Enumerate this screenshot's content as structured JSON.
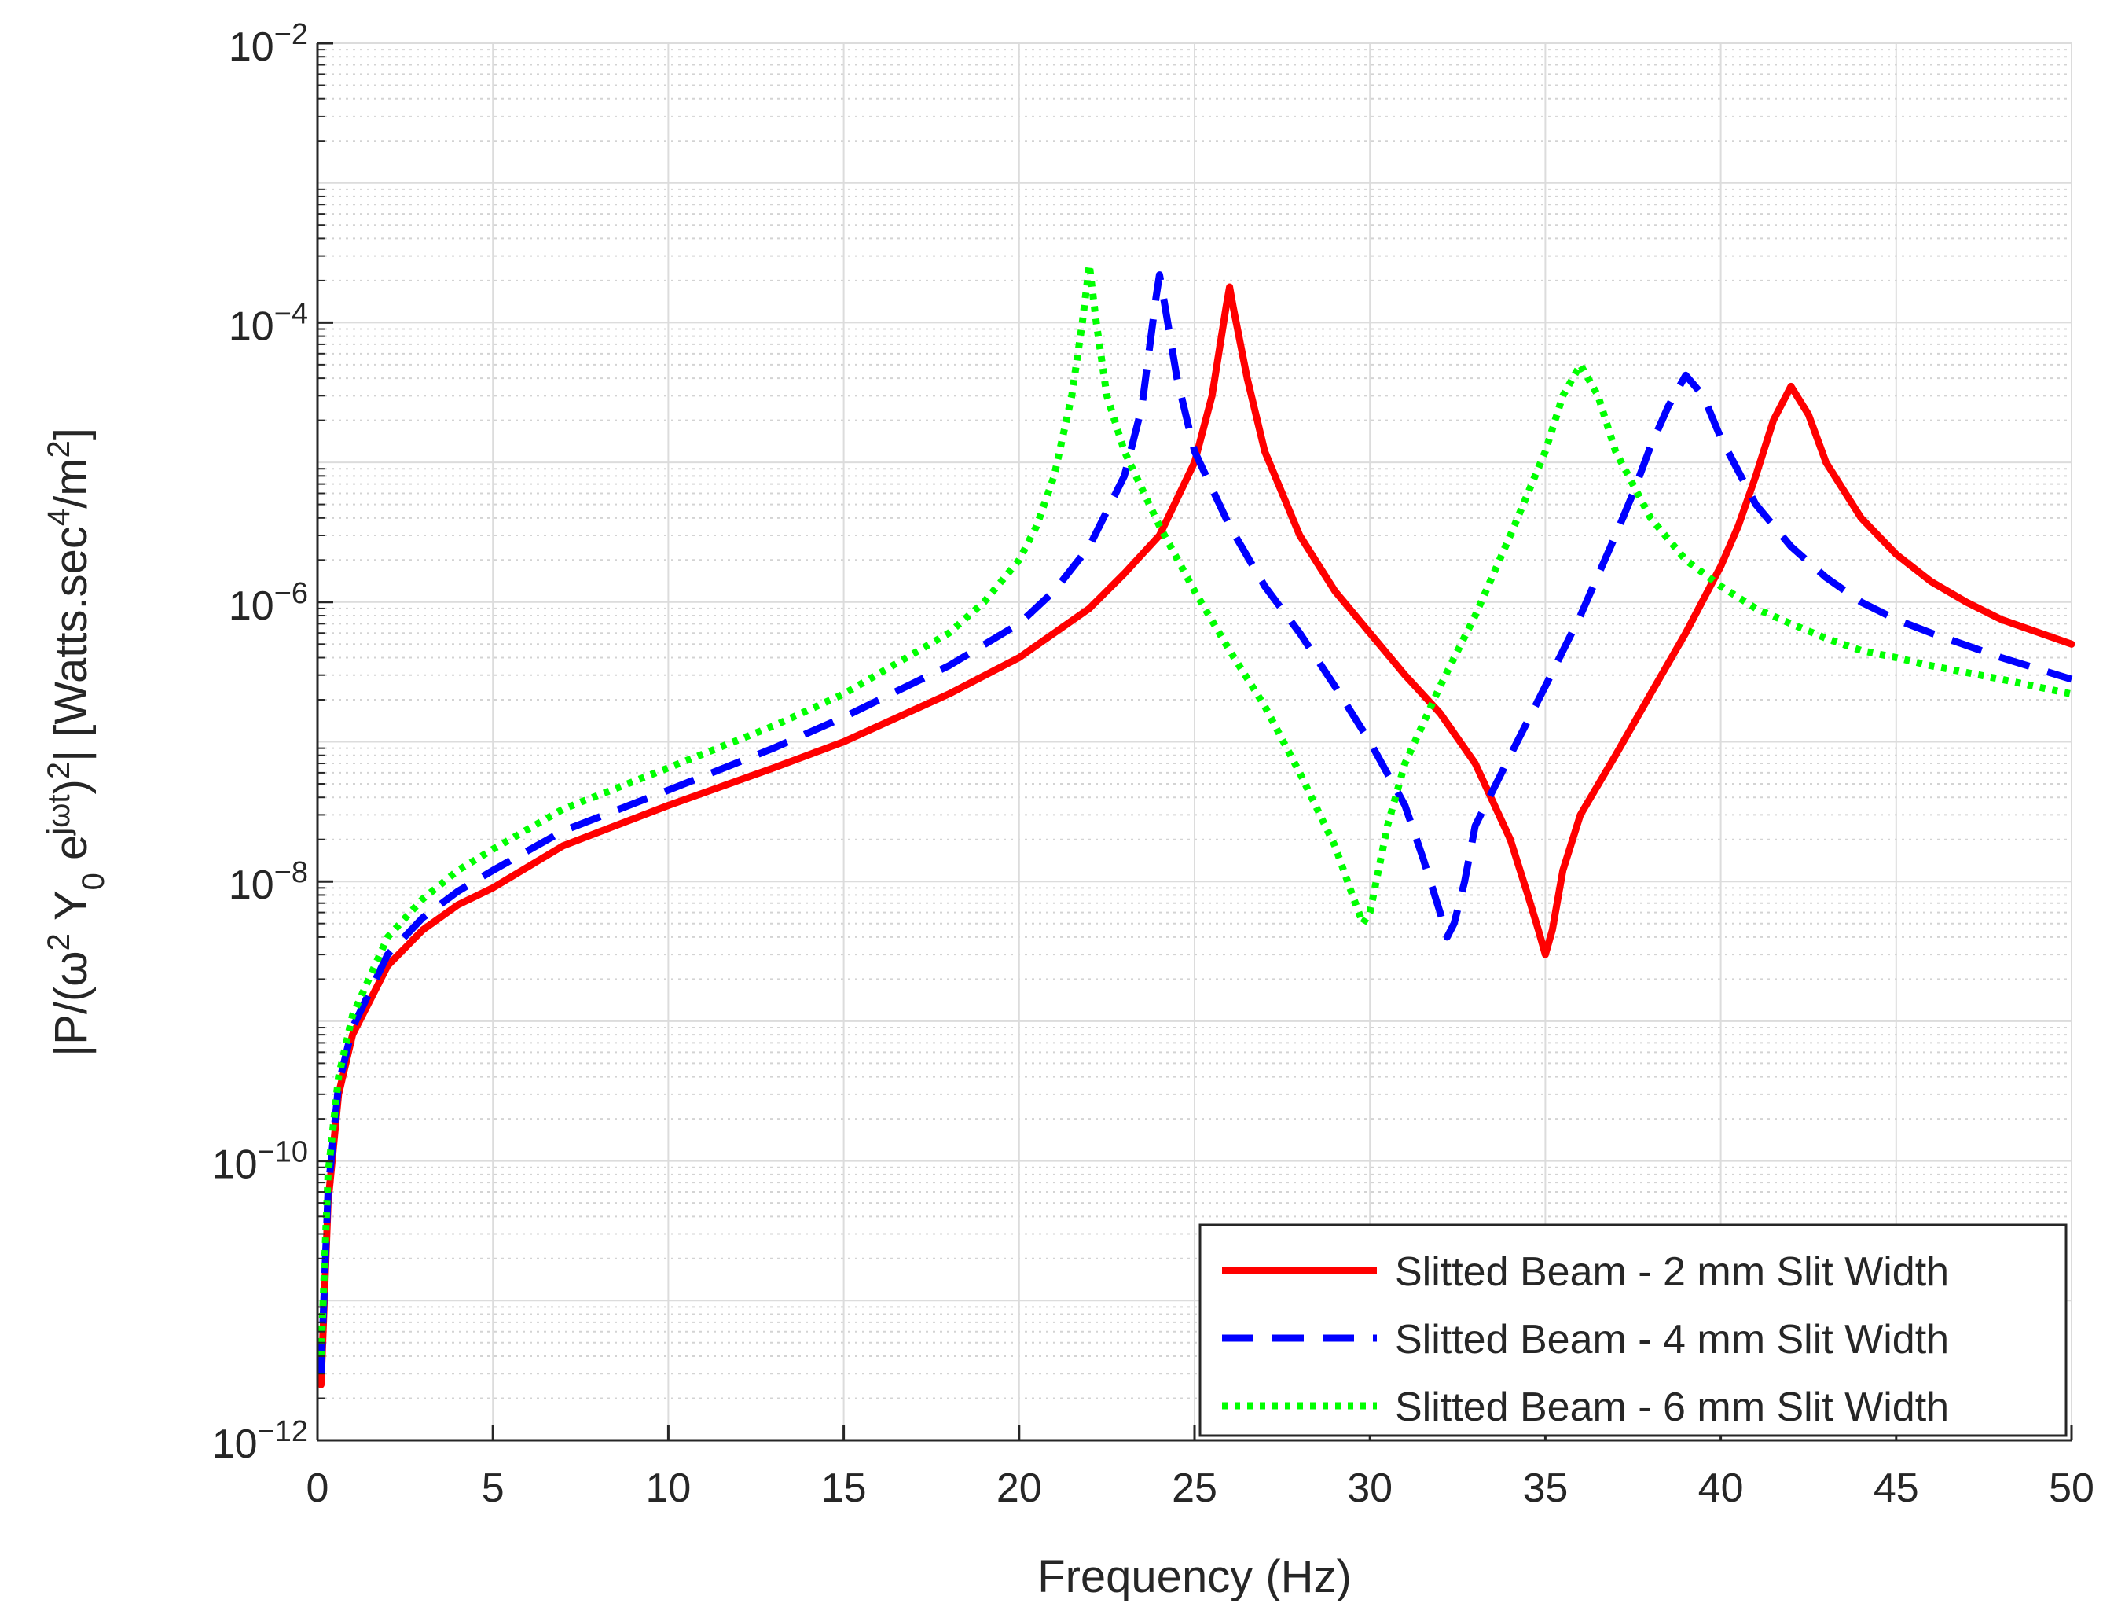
{
  "chart_data": {
    "type": "line",
    "title": "",
    "xlabel": "Frequency (Hz)",
    "ylabel": "|P/(ω² Y₀ e^(jωt))²| [Watts.sec⁴/m²]",
    "ylabel_parts": {
      "p1": "|P/(ω",
      "sup1": "2",
      "p2": " Y",
      "sub1": "0",
      "p3": " e",
      "sup2": "jωt",
      "p4": ")",
      "sup3": "2",
      "p5": "| [Watts.sec",
      "sup4": "4",
      "p6": "/m",
      "sup5": "2",
      "p7": "]"
    },
    "xscale": "linear",
    "yscale": "log",
    "xlim": [
      0,
      50
    ],
    "ylim": [
      1e-12,
      0.01
    ],
    "xticks": [
      0,
      5,
      10,
      15,
      20,
      25,
      30,
      35,
      40,
      45,
      50
    ],
    "xtick_labels": [
      "0",
      "5",
      "10",
      "15",
      "20",
      "25",
      "30",
      "35",
      "40",
      "45",
      "50"
    ],
    "yticks": [
      {
        "exp": -12,
        "base": "10",
        "sup": "−12"
      },
      {
        "exp": -10,
        "base": "10",
        "sup": "−10"
      },
      {
        "exp": -8,
        "base": "10",
        "sup": "−8"
      },
      {
        "exp": -6,
        "base": "10",
        "sup": "−6"
      },
      {
        "exp": -4,
        "base": "10",
        "sup": "−4"
      },
      {
        "exp": -2,
        "base": "10",
        "sup": "−2"
      }
    ],
    "grid": true,
    "minor_grid": true,
    "legend_position": "bottom-right",
    "series": [
      {
        "name": "Slitted Beam - 2 mm Slit Width",
        "color": "#ff0000",
        "style": "solid",
        "x": [
          0.1,
          0.3,
          0.6,
          1,
          2,
          3,
          4,
          5,
          7,
          10,
          13,
          15,
          18,
          20,
          22,
          23,
          24,
          25,
          25.5,
          25.9,
          26,
          26.1,
          26.5,
          27,
          28,
          29,
          30,
          31,
          32,
          33,
          34,
          34.5,
          34.8,
          35,
          35.2,
          35.5,
          36,
          37,
          38,
          39,
          40,
          40.5,
          41,
          41.5,
          42,
          42.5,
          43,
          44,
          45,
          46,
          47,
          48,
          50
        ],
        "y": [
          2.5e-12,
          5e-11,
          3e-10,
          8e-10,
          2.5e-09,
          4.5e-09,
          6.8e-09,
          9e-09,
          1.8e-08,
          3.5e-08,
          6.5e-08,
          1e-07,
          2.2e-07,
          4e-07,
          9e-07,
          1.6e-06,
          3e-06,
          1e-05,
          3e-05,
          0.00013,
          0.00018,
          0.00013,
          4e-05,
          1.2e-05,
          3e-06,
          1.2e-06,
          6e-07,
          3e-07,
          1.6e-07,
          7e-08,
          2e-08,
          8e-09,
          4.5e-09,
          3e-09,
          4.5e-09,
          1.2e-08,
          3e-08,
          8e-08,
          2.2e-07,
          6e-07,
          1.8e-06,
          3.5e-06,
          8e-06,
          2e-05,
          3.5e-05,
          2.2e-05,
          1e-05,
          4e-06,
          2.2e-06,
          1.4e-06,
          1e-06,
          7.5e-07,
          5e-07
        ]
      },
      {
        "name": "Slitted Beam - 4 mm Slit Width",
        "color": "#0000ff",
        "style": "dashed",
        "x": [
          0.1,
          0.3,
          0.6,
          1,
          2,
          3,
          4,
          5,
          7,
          10,
          13,
          15,
          18,
          20,
          21,
          22,
          23,
          23.5,
          23.9,
          24,
          24.1,
          24.5,
          25,
          26,
          27,
          28,
          29,
          30,
          31,
          31.5,
          32,
          32.2,
          32.4,
          32.7,
          33,
          34,
          35,
          36,
          37,
          37.5,
          38,
          38.5,
          39,
          39.5,
          40,
          41,
          42,
          43,
          44,
          45,
          46,
          48,
          50
        ],
        "y": [
          3e-12,
          6e-11,
          3.5e-10,
          9e-10,
          3e-09,
          5.5e-09,
          8.5e-09,
          1.2e-08,
          2.3e-08,
          4.5e-08,
          9e-08,
          1.5e-07,
          3.5e-07,
          7e-07,
          1.2e-06,
          2.5e-06,
          8e-06,
          2.5e-05,
          0.00015,
          0.00022,
          0.00016,
          4e-05,
          1.2e-05,
          3.5e-06,
          1.3e-06,
          6e-07,
          2.5e-07,
          1e-07,
          3.5e-08,
          1.5e-08,
          6e-09,
          4e-09,
          5e-09,
          1e-08,
          2.5e-08,
          8e-08,
          2.5e-07,
          8e-07,
          3e-06,
          6e-06,
          1.3e-05,
          2.5e-05,
          4.2e-05,
          3e-05,
          1.5e-05,
          5e-06,
          2.5e-06,
          1.5e-06,
          1e-06,
          7.5e-07,
          6e-07,
          4e-07,
          2.8e-07
        ]
      },
      {
        "name": "Slitted Beam - 6 mm Slit Width",
        "color": "#00ff00",
        "style": "dotted",
        "x": [
          0.1,
          0.3,
          0.6,
          1,
          2,
          3,
          4,
          5,
          7,
          10,
          13,
          15,
          18,
          19,
          20,
          20.5,
          21,
          21.5,
          21.8,
          22,
          22.2,
          22.5,
          23,
          24,
          25,
          26,
          27,
          28,
          29,
          29.5,
          29.8,
          30,
          30.5,
          31,
          32,
          33,
          34,
          35,
          35.5,
          36,
          36.5,
          37,
          38,
          39,
          40,
          41,
          42,
          43,
          44,
          45,
          46,
          48,
          50
        ],
        "y": [
          4e-12,
          8e-11,
          4e-10,
          1.1e-09,
          4e-09,
          7.5e-09,
          1.2e-08,
          1.7e-08,
          3.3e-08,
          6.5e-08,
          1.3e-07,
          2.2e-07,
          6e-07,
          1e-06,
          2e-06,
          3.5e-06,
          8e-06,
          3e-05,
          0.0001,
          0.00026,
          0.0001,
          3e-05,
          1.2e-05,
          3.5e-06,
          1.2e-06,
          4.5e-07,
          1.8e-07,
          6e-08,
          1.8e-08,
          8e-09,
          5e-09,
          6e-09,
          2.5e-08,
          7e-08,
          2.5e-07,
          8e-07,
          3e-06,
          1.2e-05,
          3e-05,
          5e-05,
          3e-05,
          1.2e-05,
          4e-06,
          2e-06,
          1.3e-06,
          9e-07,
          7e-07,
          5.5e-07,
          4.5e-07,
          4e-07,
          3.5e-07,
          2.8e-07,
          2.2e-07
        ]
      }
    ]
  }
}
